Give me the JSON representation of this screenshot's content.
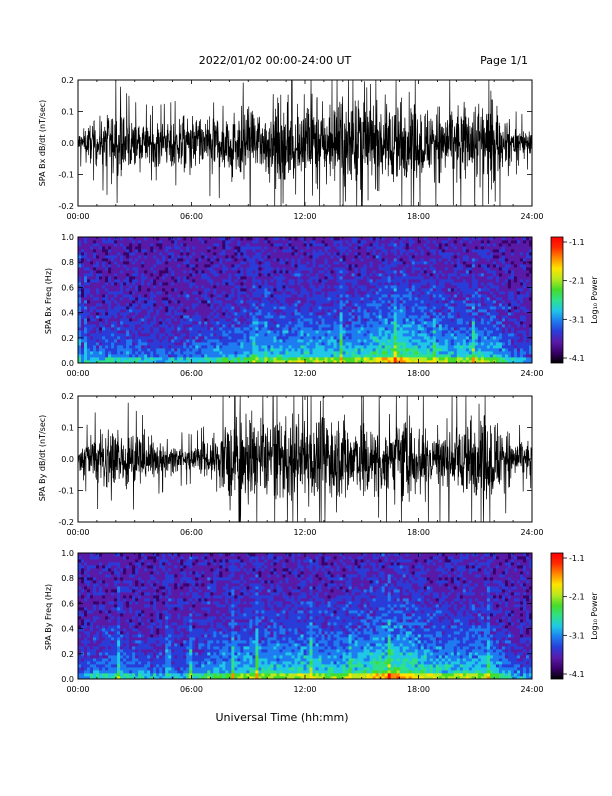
{
  "header": {
    "title": "2022/01/02  00:00-24:00 UT",
    "page": "Page 1/1"
  },
  "xaxis": {
    "label": "Universal Time (hh:mm)",
    "range_hours": [
      0,
      24
    ],
    "tick_labels": [
      "00:00",
      "06:00",
      "12:00",
      "18:00",
      "24:00"
    ]
  },
  "colorbar": {
    "label": "Log₁₀ Power",
    "range": [
      -4.1,
      -1.1
    ],
    "tick_labels": [
      "-1.1",
      "-2.1",
      "-3.1",
      "-4.1"
    ],
    "colors": [
      "#000000",
      "#3a006a",
      "#5a1aa8",
      "#2a3cd8",
      "#1e7cf0",
      "#20c8e6",
      "#2ee08a",
      "#46dc2a",
      "#b8e81e",
      "#ffe400",
      "#ff8a00",
      "#ff2a00",
      "#ff0000"
    ]
  },
  "chart_data": [
    {
      "type": "line",
      "ylabel": "SPA Bx dB/dt (nT/sec)",
      "ylim": [
        -0.2,
        0.2
      ],
      "ytick_labels": [
        "-0.2",
        "-0.1",
        "0.0",
        "0.1",
        "0.2"
      ],
      "x": [
        0,
        1,
        2,
        3,
        4,
        5,
        6,
        7,
        8,
        9,
        10,
        11,
        12,
        13,
        14,
        15,
        16,
        17,
        18,
        19,
        20,
        21,
        22,
        23,
        24
      ],
      "amplitude": [
        0.05,
        0.1,
        0.15,
        0.1,
        0.09,
        0.1,
        0.12,
        0.13,
        0.14,
        0.15,
        0.19,
        0.2,
        0.2,
        0.2,
        0.2,
        0.2,
        0.19,
        0.2,
        0.17,
        0.16,
        0.15,
        0.2,
        0.2,
        0.08,
        0.06
      ],
      "line_color": "#000000",
      "grid": false
    },
    {
      "type": "heatmap",
      "ylabel": "SPA Bx Freq (Hz)",
      "ylim": [
        0,
        1
      ],
      "ytick_labels": [
        "0.0",
        "0.2",
        "0.4",
        "0.6",
        "0.8",
        "1.0"
      ],
      "value_label": "Log₁₀ Power",
      "value_range": [
        -4.1,
        -1.1
      ],
      "x_hours": [
        0,
        1,
        2,
        3,
        4,
        5,
        6,
        7,
        8,
        9,
        10,
        11,
        12,
        13,
        14,
        15,
        16,
        17,
        18,
        19,
        20,
        21,
        22,
        23,
        24
      ],
      "activity": [
        0.25,
        0.35,
        0.4,
        0.35,
        0.3,
        0.3,
        0.35,
        0.4,
        0.45,
        0.5,
        0.55,
        0.55,
        0.6,
        0.6,
        0.55,
        0.6,
        0.75,
        0.8,
        0.7,
        0.6,
        0.55,
        0.6,
        0.55,
        0.3,
        0.25
      ]
    },
    {
      "type": "line",
      "ylabel": "SPA By dB/dt (nT/sec)",
      "ylim": [
        -0.2,
        0.2
      ],
      "ytick_labels": [
        "-0.2",
        "-0.1",
        "0.0",
        "0.1",
        "0.2"
      ],
      "x": [
        0,
        1,
        2,
        3,
        4,
        5,
        6,
        7,
        8,
        9,
        10,
        11,
        12,
        13,
        14,
        15,
        16,
        17,
        18,
        19,
        20,
        21,
        22,
        23,
        24
      ],
      "amplitude": [
        0.05,
        0.12,
        0.17,
        0.12,
        0.09,
        0.07,
        0.06,
        0.09,
        0.2,
        0.2,
        0.2,
        0.19,
        0.2,
        0.2,
        0.2,
        0.18,
        0.17,
        0.19,
        0.16,
        0.16,
        0.15,
        0.2,
        0.2,
        0.09,
        0.07
      ],
      "line_color": "#000000",
      "grid": false
    },
    {
      "type": "heatmap",
      "ylabel": "SPA By Freq (Hz)",
      "ylim": [
        0,
        1
      ],
      "ytick_labels": [
        "0.0",
        "0.2",
        "0.4",
        "0.6",
        "0.8",
        "1.0"
      ],
      "value_label": "Log₁₀ Power",
      "value_range": [
        -4.1,
        -1.1
      ],
      "x_hours": [
        0,
        1,
        2,
        3,
        4,
        5,
        6,
        7,
        8,
        9,
        10,
        11,
        12,
        13,
        14,
        15,
        16,
        17,
        18,
        19,
        20,
        21,
        22,
        23,
        24
      ],
      "activity": [
        0.25,
        0.35,
        0.4,
        0.35,
        0.3,
        0.3,
        0.35,
        0.45,
        0.55,
        0.6,
        0.6,
        0.6,
        0.65,
        0.6,
        0.6,
        0.65,
        0.8,
        0.8,
        0.7,
        0.6,
        0.6,
        0.6,
        0.55,
        0.3,
        0.25
      ]
    }
  ]
}
